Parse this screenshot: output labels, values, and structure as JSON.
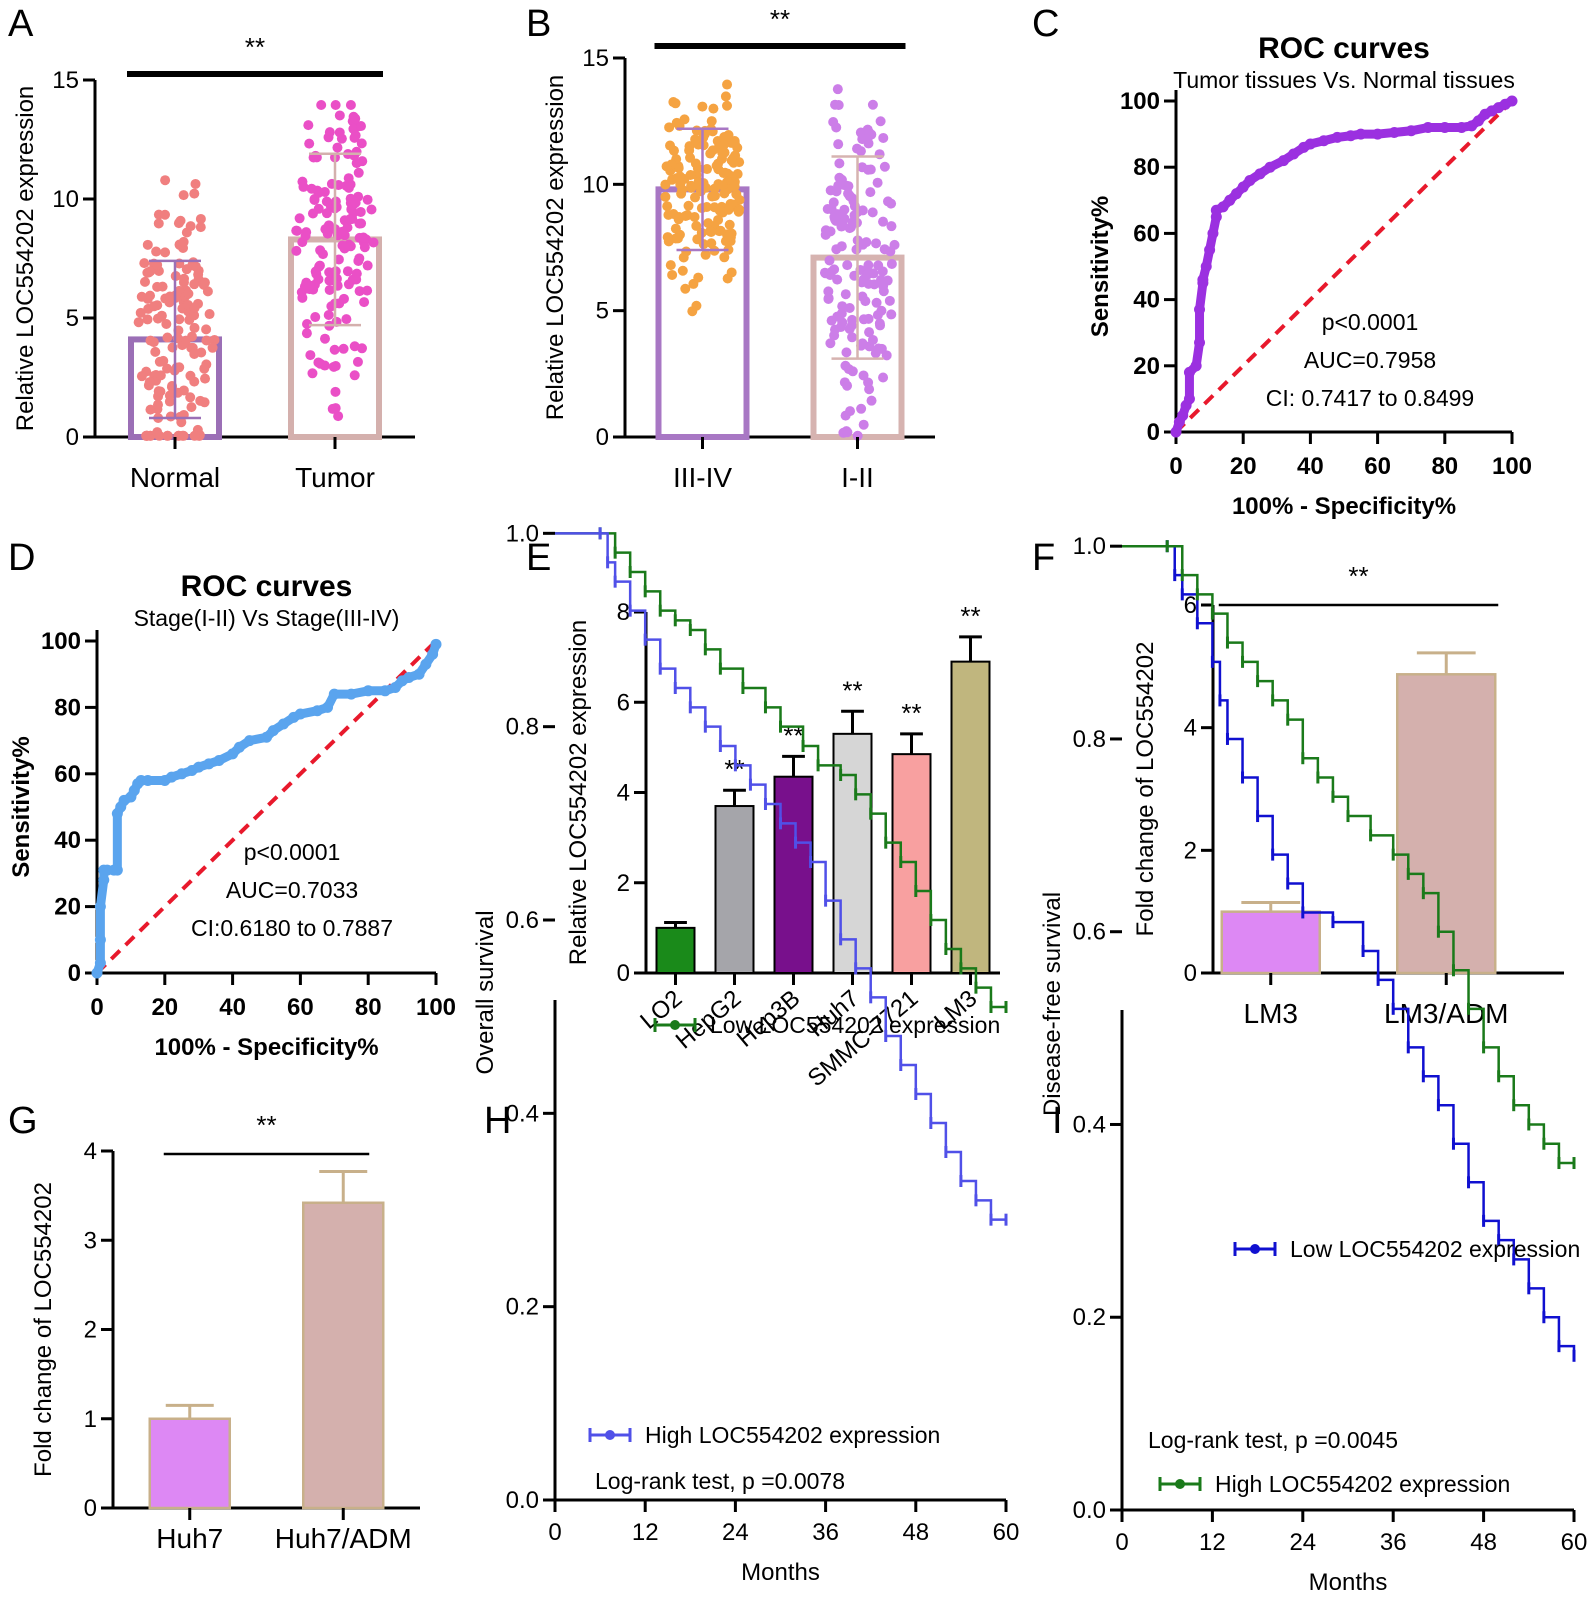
{
  "chart_data": [
    {
      "id": "A",
      "type": "bar",
      "panel_label": "A",
      "ylabel": "Relative LOC554202 expression",
      "ylim": [
        0,
        15
      ],
      "yticks": [
        0,
        5,
        10,
        15
      ],
      "categories": [
        "Normal",
        "Tumor"
      ],
      "values": [
        4.1,
        8.3
      ],
      "sd": [
        3.3,
        3.6
      ],
      "colors": [
        "#9b6fb6",
        "#d4b0ad"
      ],
      "point_colors": [
        "#f07f7f",
        "#ea4fc6"
      ],
      "significance": "**"
    },
    {
      "id": "B",
      "type": "bar",
      "panel_label": "B",
      "ylabel": "Relative LOC554202 expression",
      "ylim": [
        0,
        15
      ],
      "yticks": [
        0,
        5,
        10,
        15
      ],
      "categories": [
        "III-IV",
        "I-II"
      ],
      "values": [
        9.8,
        7.1
      ],
      "sd": [
        2.4,
        4.0
      ],
      "colors": [
        "#a877c4",
        "#d6b3b0"
      ],
      "point_colors": [
        "#f5a342",
        "#cc7ee8"
      ],
      "significance": "**"
    },
    {
      "id": "C",
      "type": "line",
      "panel_label": "C",
      "title": "ROC curves",
      "subtitle": "Tumor tissues Vs. Normal tissues",
      "xlabel": "100% - Specificity%",
      "ylabel": "Sensitivity%",
      "xlim": [
        0,
        100
      ],
      "ylim": [
        0,
        100
      ],
      "xticks": [
        0,
        20,
        40,
        60,
        80,
        100
      ],
      "yticks": [
        0,
        20,
        40,
        60,
        80,
        100
      ],
      "series": [
        {
          "name": "ROC",
          "color": "#9b30e0",
          "x": [
            0,
            1,
            2,
            3,
            4,
            4,
            6,
            7,
            7,
            8,
            8,
            9,
            10,
            11,
            12,
            12,
            14,
            16,
            18,
            20,
            22,
            25,
            28,
            32,
            35,
            38,
            40,
            44,
            48,
            52,
            55,
            60,
            65,
            70,
            75,
            80,
            85,
            88,
            90,
            92,
            94,
            96,
            98,
            100
          ],
          "y": [
            0,
            3,
            5,
            8,
            10,
            18,
            20,
            27,
            37,
            45,
            46,
            50,
            55,
            60,
            65,
            67,
            68,
            70,
            72,
            74,
            76,
            78,
            80,
            82,
            84,
            86,
            87,
            88,
            89,
            89.5,
            90,
            90,
            90.5,
            91,
            92,
            92,
            92,
            92.5,
            94,
            96,
            97,
            98,
            99,
            100
          ]
        }
      ],
      "annotations": [
        "p<0.0001",
        "AUC=0.7958",
        "CI: 0.7417 to 0.8499"
      ]
    },
    {
      "id": "D",
      "type": "line",
      "panel_label": "D",
      "title": "ROC curves",
      "subtitle": "Stage(I-II) Vs Stage(III-IV)",
      "xlabel": "100% - Specificity%",
      "ylabel": "Sensitivity%",
      "xlim": [
        0,
        100
      ],
      "ylim": [
        0,
        100
      ],
      "xticks": [
        0,
        20,
        40,
        60,
        80,
        100
      ],
      "yticks": [
        0,
        20,
        40,
        60,
        80,
        100
      ],
      "series": [
        {
          "name": "ROC",
          "color": "#5aa4ee",
          "x": [
            0,
            1,
            1,
            1,
            2,
            2,
            3,
            5,
            6,
            6,
            7,
            8,
            10,
            11,
            12,
            13,
            15,
            20,
            22,
            25,
            28,
            30,
            33,
            36,
            40,
            42,
            45,
            50,
            52,
            55,
            58,
            60,
            65,
            68,
            70,
            75,
            80,
            85,
            88,
            90,
            92,
            95,
            97,
            99,
            100
          ],
          "y": [
            0,
            3,
            10,
            20,
            28,
            31,
            31,
            31,
            31,
            48,
            50,
            52,
            53,
            55,
            57,
            58,
            58,
            58,
            59,
            60,
            61,
            62,
            63,
            64,
            66,
            68,
            70,
            71,
            73,
            75,
            77,
            78,
            79,
            80,
            84,
            84,
            85,
            85,
            86,
            88,
            89,
            90,
            93,
            96,
            99
          ]
        }
      ],
      "annotations": [
        "p<0.0001",
        "AUC=0.7033",
        "CI:0.6180 to 0.7887"
      ]
    },
    {
      "id": "E",
      "type": "bar",
      "panel_label": "E",
      "ylabel": "Relative LOC554202 expression",
      "ylim": [
        0,
        8
      ],
      "yticks": [
        0,
        2,
        4,
        6,
        8
      ],
      "categories": [
        "LO2",
        "HepG2",
        "Hep3B",
        "Huh7",
        "SMMC-7721",
        "LM3"
      ],
      "values": [
        1.0,
        3.7,
        4.35,
        5.3,
        4.85,
        6.9
      ],
      "sd": [
        0.12,
        0.35,
        0.45,
        0.5,
        0.45,
        0.55
      ],
      "colors": [
        "#1a8a1a",
        "#a5a5aa",
        "#78108c",
        "#d6d6d6",
        "#f8a0a0",
        "#c0b67e"
      ],
      "significance": [
        "",
        "**",
        "**",
        "**",
        "**",
        "**"
      ]
    },
    {
      "id": "F",
      "type": "bar",
      "panel_label": "F",
      "ylabel": "Fold change of LOC554202",
      "ylim": [
        0,
        6
      ],
      "yticks": [
        0,
        2,
        4,
        6
      ],
      "categories": [
        "LM3",
        "LM3/ADM"
      ],
      "values": [
        1.0,
        4.87
      ],
      "sd": [
        0.15,
        0.35
      ],
      "colors": [
        "#dd88f4",
        "#d4b0ad"
      ],
      "significance": "**"
    },
    {
      "id": "G",
      "type": "bar",
      "panel_label": "G",
      "ylabel": "Fold change of LOC554202",
      "ylim": [
        0,
        4
      ],
      "yticks": [
        0,
        1,
        2,
        3,
        4
      ],
      "categories": [
        "Huh7",
        "Huh7/ADM"
      ],
      "values": [
        1.0,
        3.42
      ],
      "sd": [
        0.15,
        0.35
      ],
      "colors": [
        "#dd88f4",
        "#d4b0ad"
      ],
      "significance": "**"
    },
    {
      "id": "H",
      "type": "line",
      "panel_label": "H",
      "xlabel": "Months",
      "ylabel": "Overall survival",
      "xlim": [
        0,
        60
      ],
      "ylim": [
        0,
        1.05
      ],
      "xticks": [
        0,
        12,
        24,
        36,
        48,
        60
      ],
      "yticks": [
        0.0,
        0.2,
        0.4,
        0.6,
        0.8,
        1.0
      ],
      "series": [
        {
          "name": "Low LOC554202 expression",
          "color": "#1a7a1a",
          "x": [
            0,
            6,
            8,
            10,
            12,
            14,
            16,
            18,
            20,
            22,
            25,
            28,
            30,
            33,
            35,
            38,
            40,
            42,
            44,
            46,
            48,
            50,
            52,
            54,
            56,
            58,
            60
          ],
          "y": [
            1.0,
            1.0,
            0.98,
            0.96,
            0.94,
            0.92,
            0.91,
            0.9,
            0.88,
            0.86,
            0.84,
            0.82,
            0.8,
            0.78,
            0.76,
            0.75,
            0.73,
            0.71,
            0.68,
            0.66,
            0.63,
            0.6,
            0.57,
            0.55,
            0.53,
            0.51,
            0.51
          ]
        },
        {
          "name": "High LOC554202 expression",
          "color": "#5050e8",
          "x": [
            0,
            6,
            7,
            8,
            10,
            12,
            14,
            16,
            18,
            20,
            22,
            24,
            26,
            28,
            30,
            32,
            34,
            36,
            38,
            40,
            42,
            44,
            46,
            48,
            50,
            52,
            54,
            56,
            58,
            60
          ],
          "y": [
            1.0,
            1.0,
            0.97,
            0.95,
            0.92,
            0.89,
            0.86,
            0.84,
            0.82,
            0.8,
            0.78,
            0.76,
            0.74,
            0.72,
            0.7,
            0.68,
            0.66,
            0.62,
            0.58,
            0.55,
            0.52,
            0.48,
            0.45,
            0.42,
            0.39,
            0.36,
            0.33,
            0.31,
            0.29,
            0.29
          ]
        }
      ],
      "legend": [
        "Low LOC554202 expression",
        "High LOC554202 expression"
      ],
      "annotations": [
        "Log-rank test, p =0.0078"
      ]
    },
    {
      "id": "I",
      "type": "line",
      "panel_label": "I",
      "xlabel": "Months",
      "ylabel": "Disease-free survival",
      "xlim": [
        0,
        60
      ],
      "ylim": [
        0,
        1.05
      ],
      "xticks": [
        0,
        12,
        24,
        36,
        48,
        60
      ],
      "yticks": [
        0.0,
        0.2,
        0.4,
        0.6,
        0.8,
        1.0
      ],
      "series": [
        {
          "name": "Low LOC554202 expression",
          "color": "#1010d0",
          "x": [
            0,
            6,
            7,
            8,
            10,
            12,
            13,
            14,
            16,
            18,
            20,
            22,
            24,
            28,
            32,
            34,
            36,
            38,
            40,
            42,
            44,
            46,
            48,
            50,
            52,
            54,
            56,
            58,
            60
          ],
          "y": [
            1.0,
            1.0,
            0.97,
            0.95,
            0.92,
            0.88,
            0.84,
            0.8,
            0.76,
            0.72,
            0.68,
            0.65,
            0.62,
            0.61,
            0.58,
            0.55,
            0.52,
            0.48,
            0.45,
            0.42,
            0.38,
            0.34,
            0.3,
            0.28,
            0.26,
            0.23,
            0.2,
            0.17,
            0.16
          ]
        },
        {
          "name": "High LOC554202 expression",
          "color": "#1a7a1a",
          "x": [
            0,
            6,
            8,
            10,
            12,
            14,
            16,
            18,
            20,
            22,
            24,
            26,
            28,
            30,
            33,
            36,
            38,
            40,
            42,
            44,
            46,
            48,
            50,
            52,
            54,
            56,
            58,
            60
          ],
          "y": [
            1.0,
            1.0,
            0.97,
            0.95,
            0.93,
            0.9,
            0.88,
            0.86,
            0.84,
            0.82,
            0.78,
            0.76,
            0.74,
            0.72,
            0.7,
            0.68,
            0.66,
            0.64,
            0.6,
            0.56,
            0.52,
            0.48,
            0.45,
            0.42,
            0.4,
            0.38,
            0.36,
            0.36
          ]
        }
      ],
      "legend": [
        "Low LOC554202 expression",
        "High LOC554202 expression"
      ],
      "annotations": [
        "Log-rank test, p =0.0045"
      ]
    }
  ]
}
